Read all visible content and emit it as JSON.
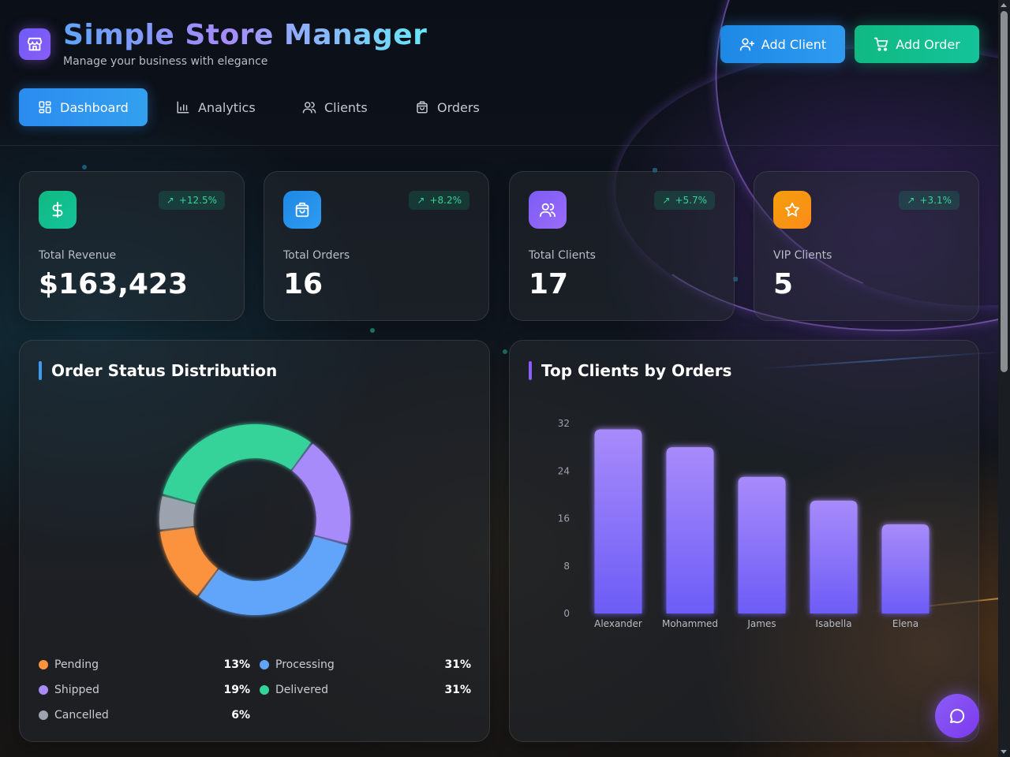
{
  "colors": {
    "pending": "#fb923c",
    "processing": "#60a5fa",
    "shipped": "#a78bfa",
    "delivered": "#34d399",
    "cancelled": "#9ca3af",
    "bar_top": "#a78bfa",
    "bar_bottom": "#6d5cf6"
  },
  "header": {
    "title": "Simple Store Manager",
    "subtitle": "Manage your business with elegance",
    "logo_icon": "store-icon",
    "add_client_label": "Add Client",
    "add_order_label": "Add Order"
  },
  "tabs": [
    {
      "label": "Dashboard",
      "icon": "dashboard-icon",
      "active": true
    },
    {
      "label": "Analytics",
      "icon": "bar-chart-icon",
      "active": false
    },
    {
      "label": "Clients",
      "icon": "users-icon",
      "active": false
    },
    {
      "label": "Orders",
      "icon": "shopping-bag-icon",
      "active": false
    }
  ],
  "stats": [
    {
      "label": "Total Revenue",
      "value": "$163,423",
      "change": "+12.5%",
      "icon": "dollar-icon"
    },
    {
      "label": "Total Orders",
      "value": "16",
      "change": "+8.2%",
      "icon": "shopping-bag-icon"
    },
    {
      "label": "Total Clients",
      "value": "17",
      "change": "+5.7%",
      "icon": "users-icon"
    },
    {
      "label": "VIP Clients",
      "value": "5",
      "change": "+3.1%",
      "icon": "star-icon"
    }
  ],
  "order_status": {
    "title": "Order Status Distribution",
    "legend": [
      {
        "label": "Pending",
        "pct": "13%"
      },
      {
        "label": "Processing",
        "pct": "31%"
      },
      {
        "label": "Shipped",
        "pct": "19%"
      },
      {
        "label": "Delivered",
        "pct": "31%"
      },
      {
        "label": "Cancelled",
        "pct": "6%"
      }
    ]
  },
  "top_clients": {
    "title": "Top Clients by Orders"
  },
  "chart_data": [
    {
      "type": "pie",
      "title": "Order Status Distribution",
      "categories": [
        "Processing",
        "Pending",
        "Cancelled",
        "Delivered",
        "Shipped"
      ],
      "values": [
        31,
        13,
        6,
        31,
        19
      ]
    },
    {
      "type": "bar",
      "title": "Top Clients by Orders",
      "categories": [
        "Alexander",
        "Mohammed",
        "James",
        "Isabella",
        "Elena"
      ],
      "values": [
        31,
        28,
        23,
        19,
        15
      ],
      "yticks": [
        "0",
        "8",
        "16",
        "24",
        "32"
      ],
      "ylim": [
        0,
        32
      ]
    }
  ],
  "fab_icon": "chat-icon"
}
